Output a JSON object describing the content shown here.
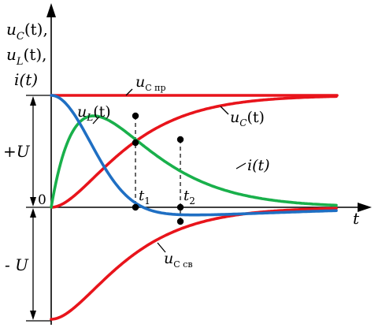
{
  "colors": {
    "red": "#e8141b",
    "green": "#19b04b",
    "blue": "#1f6fc3",
    "axis": "#000000"
  },
  "axes": {
    "origin_label": "0",
    "t_label": "t",
    "y_label_line1_var": "u",
    "y_label_line1_sub": "C",
    "y_label_line1_rest": "(t),",
    "y_label_line2_var": "u",
    "y_label_line2_sub": "L",
    "y_label_line2_rest": "(t),",
    "y_label_line3": "i(t)"
  },
  "levels": {
    "plus_u": "+U",
    "minus_u": "- U"
  },
  "curves": {
    "uc_forced_var": "u",
    "uc_forced_sub": "C пр",
    "uc_free_var": "u",
    "uc_free_sub": "C св",
    "uc_var": "u",
    "uc_sub": "C",
    "uc_rest": "(t)",
    "ul_var": "u",
    "ul_sub": "L",
    "ul_rest": "(t)",
    "i_label": "i(t)"
  },
  "markers": {
    "t1_var": "t",
    "t1_sub": "1",
    "t2_var": "t",
    "t2_sub": "2"
  }
}
